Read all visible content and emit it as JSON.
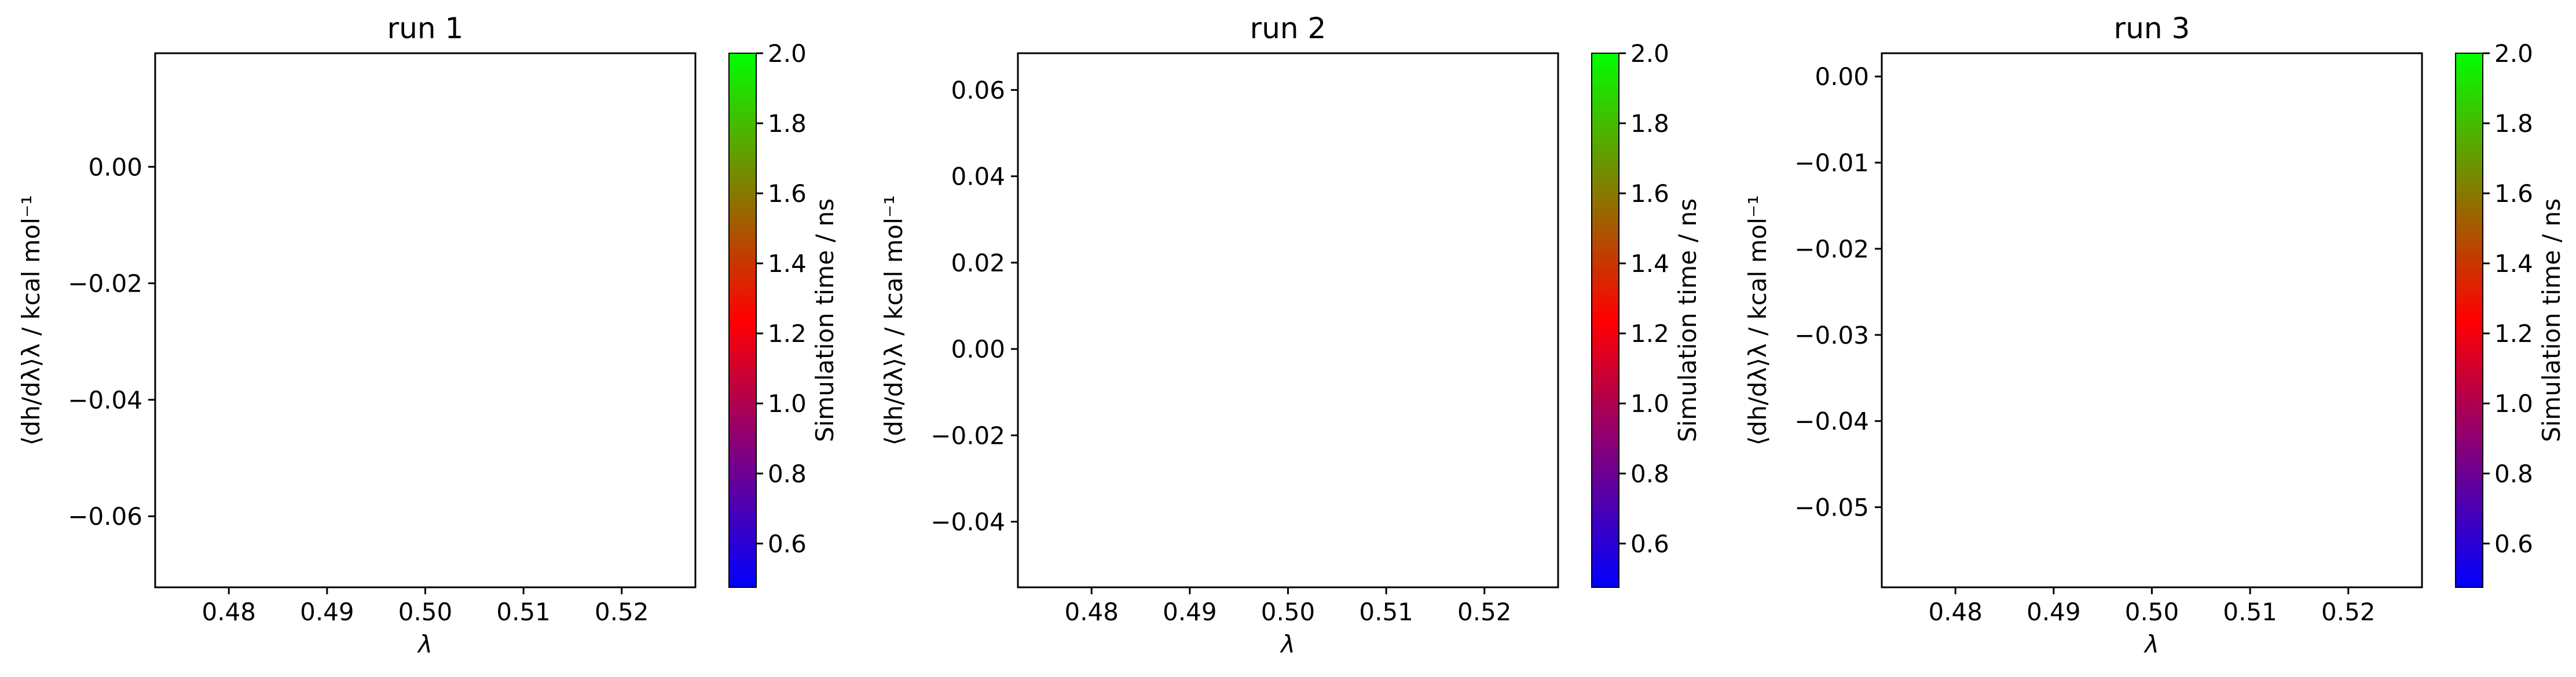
{
  "figure": {
    "colorbar_stops": [
      "#0000ff",
      "#ff0000",
      "#00ff00"
    ]
  },
  "chart_data": [
    {
      "type": "scatter",
      "title": "run 1",
      "xlabel": "λ",
      "ylabel": "⟨dh/dλ⟩λ / kcal mol⁻¹",
      "xlim": [
        0.4725,
        0.5275
      ],
      "ylim": [
        -0.0722,
        0.0195
      ],
      "xticks": [
        0.48,
        0.49,
        0.5,
        0.51,
        0.52
      ],
      "xtick_labels": [
        "0.48",
        "0.49",
        "0.50",
        "0.51",
        "0.52"
      ],
      "yticks": [
        0.0,
        -0.02,
        -0.04,
        -0.06
      ],
      "ytick_labels": [
        "0.00",
        "−0.02",
        "−0.04",
        "−0.06"
      ],
      "series": [],
      "grid": false,
      "colorbar": {
        "label": "Simulation time / ns",
        "range": [
          0.475,
          2.0
        ],
        "ticks": [
          0.6,
          0.8,
          1.0,
          1.2,
          1.4,
          1.6,
          1.8,
          2.0
        ],
        "tick_labels": [
          "0.6",
          "0.8",
          "1.0",
          "1.2",
          "1.4",
          "1.6",
          "1.8",
          "2.0"
        ]
      }
    },
    {
      "type": "scatter",
      "title": "run 2",
      "xlabel": "λ",
      "ylabel": "⟨dh/dλ⟩λ / kcal mol⁻¹",
      "xlim": [
        0.4725,
        0.5275
      ],
      "ylim": [
        -0.0552,
        0.0685
      ],
      "xticks": [
        0.48,
        0.49,
        0.5,
        0.51,
        0.52
      ],
      "xtick_labels": [
        "0.48",
        "0.49",
        "0.50",
        "0.51",
        "0.52"
      ],
      "yticks": [
        0.06,
        0.04,
        0.02,
        0.0,
        -0.02,
        -0.04
      ],
      "ytick_labels": [
        "0.06",
        "0.04",
        "0.02",
        "0.00",
        "−0.02",
        "−0.04"
      ],
      "series": [],
      "grid": false,
      "colorbar": {
        "label": "Simulation time / ns",
        "range": [
          0.475,
          2.0
        ],
        "ticks": [
          0.6,
          0.8,
          1.0,
          1.2,
          1.4,
          1.6,
          1.8,
          2.0
        ],
        "tick_labels": [
          "0.6",
          "0.8",
          "1.0",
          "1.2",
          "1.4",
          "1.6",
          "1.8",
          "2.0"
        ]
      }
    },
    {
      "type": "scatter",
      "title": "run 3",
      "xlabel": "λ",
      "ylabel": "⟨dh/dλ⟩λ / kcal mol⁻¹",
      "xlim": [
        0.4725,
        0.5275
      ],
      "ylim": [
        -0.0593,
        0.0027
      ],
      "xticks": [
        0.48,
        0.49,
        0.5,
        0.51,
        0.52
      ],
      "xtick_labels": [
        "0.48",
        "0.49",
        "0.50",
        "0.51",
        "0.52"
      ],
      "yticks": [
        0.0,
        -0.01,
        -0.02,
        -0.03,
        -0.04,
        -0.05
      ],
      "ytick_labels": [
        "0.00",
        "−0.01",
        "−0.02",
        "−0.03",
        "−0.04",
        "−0.05"
      ],
      "series": [],
      "grid": false,
      "colorbar": {
        "label": "Simulation time / ns",
        "range": [
          0.475,
          2.0
        ],
        "ticks": [
          0.6,
          0.8,
          1.0,
          1.2,
          1.4,
          1.6,
          1.8,
          2.0
        ],
        "tick_labels": [
          "0.6",
          "0.8",
          "1.0",
          "1.2",
          "1.4",
          "1.6",
          "1.8",
          "2.0"
        ]
      }
    }
  ]
}
